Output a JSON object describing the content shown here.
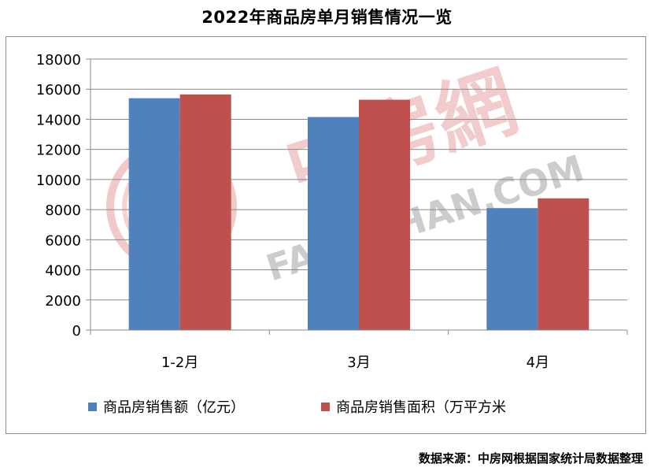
{
  "chart_data": {
    "type": "bar",
    "title": "2022年商品房单月销售情况一览",
    "categories": [
      "1-2月",
      "3月",
      "4月"
    ],
    "series": [
      {
        "name": "商品房销售额（亿元）",
        "color": "#4f81bd",
        "values": [
          15400,
          14150,
          8100
        ]
      },
      {
        "name": "商品房销售面积（万平方米",
        "color": "#c0504d",
        "values": [
          15650,
          15300,
          8750
        ]
      }
    ],
    "ylim": [
      0,
      18000
    ],
    "yticks": [
      "0",
      "2000",
      "4000",
      "6000",
      "8000",
      "10000",
      "12000",
      "14000",
      "16000",
      "18000"
    ],
    "grid": true,
    "legend": "bottom"
  },
  "watermark": {
    "chinese": "中房網",
    "latin": "FANGCHAN.COM"
  },
  "source_note": "数据来源：中房网根据国家统计局数据整理"
}
